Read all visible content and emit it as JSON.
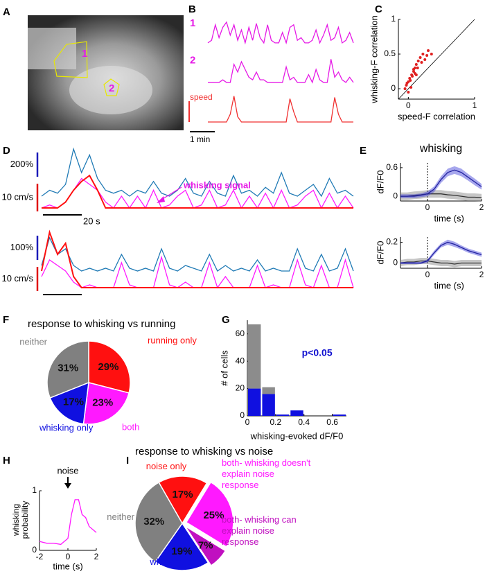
{
  "panel_labels": [
    "A",
    "B",
    "C",
    "D",
    "E",
    "F",
    "G",
    "H",
    "I"
  ],
  "panel_a": {
    "roi_labels": [
      "1",
      "2"
    ]
  },
  "chart_data": [
    {
      "type": "line",
      "stacked": true,
      "series": [
        {
          "name": "1",
          "color": "#e619e6",
          "values": [
            0.2,
            0.3,
            0.9,
            0.4,
            0.8,
            1,
            0.5,
            0.9,
            0.3,
            0.7,
            0.2,
            0.8,
            0.3,
            0.95,
            0.4,
            0.2,
            0.9,
            0.3,
            0.2,
            0.2,
            0.6,
            0.2,
            0.8,
            0.9,
            0.3,
            0.4,
            0.2,
            0.2,
            0.3,
            0.7,
            0.2,
            0.5,
            0.9,
            0.3,
            0.4,
            0.8,
            0.2,
            0.3,
            0.6,
            0.2
          ]
        },
        {
          "name": "2",
          "color": "#e619e6",
          "values": [
            0.1,
            0.1,
            0.1,
            0.1,
            0.2,
            0.1,
            0.1,
            0.8,
            0.5,
            0.9,
            0.6,
            0.3,
            0.2,
            0.5,
            0.2,
            0.2,
            0.1,
            0.1,
            0.1,
            0.1,
            0.1,
            0.7,
            0.2,
            0.3,
            0.1,
            0.1,
            0.1,
            0.4,
            0.1,
            0.6,
            0.2,
            0.1,
            0.1,
            1,
            0.3,
            0.5,
            0.2,
            0.1,
            0.3,
            0.1
          ]
        },
        {
          "name": "speed",
          "color": "#f03030",
          "values": [
            0,
            0,
            0,
            0,
            0,
            0,
            0.3,
            1,
            0.2,
            0,
            0,
            0,
            0,
            0,
            0,
            0,
            0,
            0,
            0,
            0,
            0,
            0,
            0.9,
            0.4,
            0,
            0,
            0,
            0,
            0,
            0,
            0,
            0,
            0,
            0,
            0.95,
            0.3,
            0,
            0,
            0,
            0
          ]
        }
      ],
      "scale_bars": [
        {
          "label": "1 min"
        }
      ]
    },
    {
      "type": "scatter",
      "xlabel": "speed-F correlation",
      "ylabel": "whisking-F correlation",
      "color": "#e02020",
      "xlim": [
        -0.15,
        1
      ],
      "ylim": [
        -0.15,
        1
      ],
      "xticks": [
        0,
        1
      ],
      "yticks": [
        0,
        0.5,
        1
      ],
      "x": [
        -0.05,
        -0.03,
        0,
        0.02,
        0.05,
        0.08,
        0.1,
        0.12,
        0.15,
        0.18,
        0.2,
        0.22,
        0.25,
        0.3,
        0.35,
        0,
        0.03,
        0.06,
        0.1,
        0.14,
        -0.02,
        0.04,
        0.08,
        0.28,
        0.12
      ],
      "y": [
        0,
        0.05,
        0.1,
        0.15,
        0.2,
        0.25,
        0.3,
        0.35,
        0.4,
        0.45,
        0.38,
        0.5,
        0.42,
        0.55,
        0.5,
        -0.05,
        0.12,
        0.18,
        0.22,
        0.3,
        0.08,
        0.02,
        0.28,
        0.48,
        0.2
      ]
    },
    {
      "type": "line",
      "series": [
        {
          "color": "#1f7ab5",
          "values": [
            0.2,
            0.3,
            0.25,
            0.4,
            1,
            0.6,
            0.9,
            0.5,
            0.3,
            0.25,
            0.3,
            0.2,
            0.3,
            0.25,
            0.45,
            0.25,
            0.2,
            0.3,
            0.5,
            0.25,
            0.2,
            0.45,
            0.25,
            0.2,
            0.55,
            0.25,
            0.3,
            0.2,
            0.35,
            0.25,
            0.6,
            0.25,
            0.2,
            0.3,
            0.4,
            0.2,
            0.5,
            0.25,
            0.3,
            0.2
          ]
        },
        {
          "color": "#ff19ff",
          "values": [
            0,
            0.05,
            0,
            0.1,
            0.3,
            0.5,
            0.4,
            0.3,
            0.1,
            0,
            0.2,
            0,
            0.2,
            0,
            0.3,
            0,
            0.05,
            0.2,
            0.3,
            0,
            0.05,
            0.3,
            0,
            0.05,
            0.3,
            0,
            0.2,
            0,
            0.25,
            0,
            0.3,
            0,
            0.05,
            0.2,
            0.3,
            0,
            0.25,
            0,
            0.2,
            0
          ]
        },
        {
          "color": "#ff1010",
          "values": [
            0,
            0,
            0,
            0.1,
            0.3,
            0.45,
            0.55,
            0.3,
            0,
            0,
            0,
            0,
            0,
            0,
            0,
            0,
            0,
            0,
            0,
            0,
            0,
            0,
            0,
            0,
            0,
            0,
            0,
            0,
            0,
            0,
            0,
            0,
            0,
            0,
            0,
            0,
            0,
            0,
            0,
            0
          ]
        }
      ],
      "scale_bars": [
        {
          "label": "200%",
          "color": "#1a1ab8"
        },
        {
          "label": "10 cm/s",
          "color": "#e01010"
        },
        {
          "label": "20 s"
        }
      ],
      "annotation": "whisking signal"
    },
    {
      "type": "line",
      "series": [
        {
          "color": "#1f7ab5",
          "values": [
            0.4,
            0.9,
            0.6,
            0.7,
            0.4,
            0.3,
            0.35,
            0.3,
            0.35,
            0.3,
            0.6,
            0.35,
            0.3,
            0.35,
            0.3,
            0.7,
            0.35,
            0.3,
            0.4,
            0.35,
            0.3,
            0.6,
            0.3,
            0.4,
            0.3,
            0.35,
            0.3,
            0.5,
            0.3,
            0.35,
            0.3,
            0.3,
            0.7,
            0.35,
            0.3,
            0.6,
            0.3,
            0.35,
            0.7,
            0.3
          ]
        },
        {
          "color": "#ff19ff",
          "values": [
            0.2,
            0.5,
            0.4,
            0.3,
            0.1,
            0,
            0.05,
            0,
            0,
            0,
            0.45,
            0.05,
            0,
            0,
            0,
            0.55,
            0.05,
            0,
            0.1,
            0,
            0,
            0.45,
            0,
            0.2,
            0,
            0,
            0,
            0.4,
            0,
            0.05,
            0,
            0,
            0.5,
            0.05,
            0,
            0.4,
            0,
            0,
            0.5,
            0
          ]
        },
        {
          "color": "#ff1010",
          "values": [
            0.3,
            1,
            0.6,
            0.8,
            0.2,
            0,
            0,
            0,
            0,
            0,
            0,
            0,
            0,
            0,
            0,
            0,
            0,
            0,
            0,
            0,
            0,
            0,
            0,
            0,
            0,
            0,
            0,
            0,
            0,
            0,
            0,
            0,
            0,
            0,
            0,
            0,
            0,
            0,
            0,
            0
          ]
        }
      ],
      "scale_bars": [
        {
          "label": "100%",
          "color": "#1a1ab8"
        },
        {
          "label": "10 cm/s",
          "color": "#e01010"
        }
      ]
    },
    {
      "type": "line",
      "title": "whisking",
      "xlabel": "time (s)",
      "ylabel": "dF/F0",
      "xlim": [
        -1,
        2
      ],
      "ylim": [
        -0.1,
        0.7
      ],
      "xticks": [
        0,
        2
      ],
      "yticks": [
        0,
        0.6
      ],
      "x": [
        -1,
        -0.75,
        -0.5,
        -0.25,
        0,
        0.25,
        0.5,
        0.75,
        1,
        1.25,
        1.5,
        1.75,
        2
      ],
      "series": [
        {
          "color": "#808080",
          "values": [
            0,
            0,
            0.02,
            0.03,
            0.05,
            0.05,
            0.05,
            0.03,
            0.02,
            0,
            -0.02,
            -0.02,
            -0.03
          ],
          "errors": [
            0.08,
            0.08,
            0.08,
            0.08,
            0.08,
            0.08,
            0.08,
            0.08,
            0.08,
            0.08,
            0.08,
            0.08,
            0.08
          ]
        },
        {
          "color": "#3b3bd6",
          "values": [
            0,
            0,
            0,
            0.02,
            0.05,
            0.15,
            0.35,
            0.5,
            0.55,
            0.5,
            0.4,
            0.3,
            0.2
          ],
          "errors": [
            0.04,
            0.04,
            0.04,
            0.04,
            0.05,
            0.06,
            0.07,
            0.08,
            0.08,
            0.08,
            0.07,
            0.07,
            0.06
          ]
        }
      ]
    },
    {
      "type": "line",
      "xlabel": "time (s)",
      "ylabel": "dF/F0",
      "xlim": [
        -1,
        2
      ],
      "ylim": [
        -0.05,
        0.25
      ],
      "xticks": [
        0,
        2
      ],
      "yticks": [
        0,
        0.2
      ],
      "x": [
        -1,
        -0.75,
        -0.5,
        -0.25,
        0,
        0.25,
        0.5,
        0.75,
        1,
        1.25,
        1.5,
        1.75,
        2
      ],
      "series": [
        {
          "color": "#808080",
          "values": [
            0,
            0.01,
            0.01,
            0.02,
            0.02,
            0.01,
            0,
            0,
            -0.01,
            0,
            0,
            0,
            0
          ],
          "errors": [
            0.03,
            0.03,
            0.03,
            0.03,
            0.03,
            0.03,
            0.03,
            0.03,
            0.03,
            0.03,
            0.03,
            0.03,
            0.03
          ]
        },
        {
          "color": "#3b3bd6",
          "values": [
            0,
            0,
            0,
            0,
            0.02,
            0.1,
            0.17,
            0.2,
            0.18,
            0.15,
            0.12,
            0.1,
            0.08
          ],
          "errors": [
            0.01,
            0.01,
            0.01,
            0.01,
            0.015,
            0.02,
            0.02,
            0.025,
            0.025,
            0.02,
            0.02,
            0.02,
            0.02
          ]
        }
      ]
    },
    {
      "type": "pie",
      "title": "response to whisking vs running",
      "categories": [
        "running only",
        "both",
        "whisking only",
        "neither"
      ],
      "values": [
        29,
        23,
        17,
        31
      ],
      "value_labels": [
        "29%",
        "23%",
        "17%",
        "31%"
      ],
      "colors": [
        "#ff1010",
        "#ff19ff",
        "#1010e0",
        "#808080"
      ]
    },
    {
      "type": "histogram",
      "xlabel": "whisking-evoked dF/F0",
      "ylabel": "# of cells",
      "annotation": "p<0.05",
      "bins": [
        0,
        0.1,
        0.2,
        0.3,
        0.4,
        0.5,
        0.6,
        0.7
      ],
      "series": [
        {
          "color": "#1010e0",
          "values": [
            20,
            16,
            1,
            4,
            0,
            0,
            1
          ]
        },
        {
          "color": "#8c8c8c",
          "values": [
            47,
            5,
            0,
            0,
            0,
            0,
            0
          ]
        }
      ],
      "xlim": [
        0,
        0.7
      ],
      "ylim": [
        0,
        70
      ],
      "xticks": [
        0,
        0.2,
        0.4,
        0.6
      ],
      "yticks": [
        0,
        20,
        40,
        60
      ]
    },
    {
      "type": "line",
      "xlabel": "time (s)",
      "ylabel": "whisking probability",
      "annotation": "noise",
      "xlim": [
        -2,
        2
      ],
      "ylim": [
        0,
        1
      ],
      "xticks": [
        -2,
        0,
        2
      ],
      "yticks": [
        0,
        1
      ],
      "x": [
        -2,
        -1.5,
        -1,
        -0.5,
        0,
        0.25,
        0.5,
        0.75,
        1,
        1.25,
        1.5,
        2
      ],
      "series": [
        {
          "color": "#ff19ff",
          "values": [
            0.15,
            0.12,
            0.12,
            0.1,
            0.2,
            0.6,
            0.85,
            0.85,
            0.6,
            0.55,
            0.4,
            0.3
          ]
        }
      ]
    },
    {
      "type": "pie",
      "title": "response to whisking vs noise",
      "categories": [
        "noise only",
        "both- whisking doesn't explain noise response",
        "both- whisking can explain noise response",
        "whisking only",
        "neither"
      ],
      "values": [
        17,
        25,
        7,
        19,
        32
      ],
      "value_labels": [
        "17%",
        "25%",
        "7%",
        "19%",
        "32%"
      ],
      "colors": [
        "#ff1010",
        "#ff19ff",
        "#c010c0",
        "#1010e0",
        "#808080"
      ]
    }
  ]
}
